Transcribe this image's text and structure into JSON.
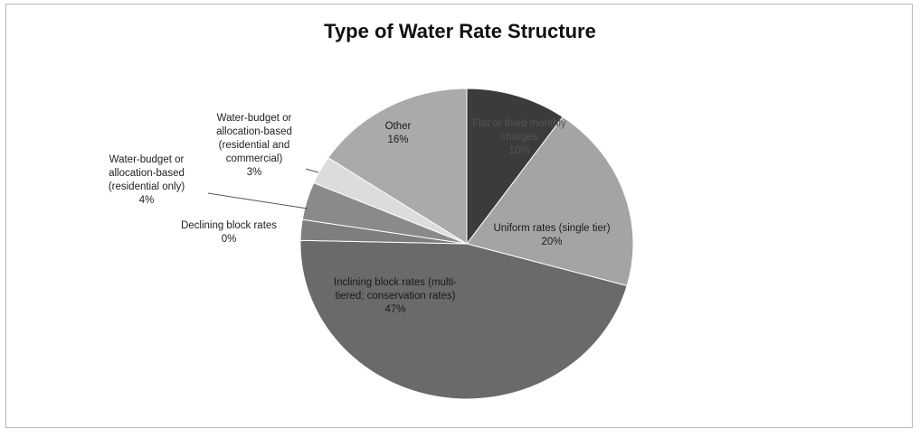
{
  "chart_data": {
    "type": "pie",
    "title": "Type of Water Rate Structure",
    "slices": [
      {
        "name": "Flat or fixed monthly charges",
        "value": 10,
        "label": "10%",
        "color": "#3b3b3b"
      },
      {
        "name": "Uniform rates (single tier)",
        "value": 20,
        "label": "20%",
        "color": "#a4a4a4"
      },
      {
        "name": "Inclining block rates (multi-tiered; conservation rates)",
        "value": 47,
        "label": "47%",
        "color": "#6a6a6a"
      },
      {
        "name": "Declining block rates",
        "value": 0,
        "label": "0%",
        "color": "#7e7e7e"
      },
      {
        "name": "Water-budget or allocation-based (residential only)",
        "value": 4,
        "label": "4%",
        "color": "#8a8a8a"
      },
      {
        "name": "Water-budget or allocation-based (residential and commercial)",
        "value": 3,
        "label": "3%",
        "color": "#dcdcdc"
      },
      {
        "name": "Other",
        "value": 16,
        "label": "16%",
        "color": "#aaaaaa"
      }
    ]
  }
}
